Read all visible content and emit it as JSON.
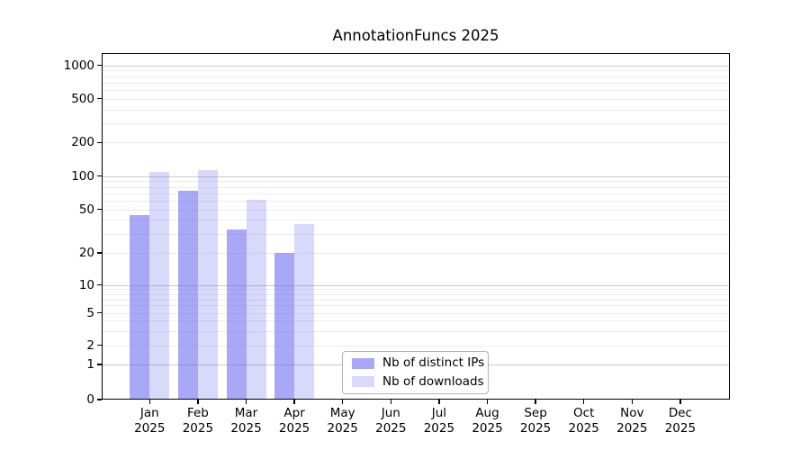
{
  "chart_data": {
    "type": "bar",
    "title": "AnnotationFuncs 2025",
    "categories": [
      "Jan",
      "Feb",
      "Mar",
      "Apr",
      "May",
      "Jun",
      "Jul",
      "Aug",
      "Sep",
      "Oct",
      "Nov",
      "Dec"
    ],
    "x_tick_year": "2025",
    "series": [
      {
        "name": "Nb of distinct IPs",
        "color": "#a8a8f3",
        "values": [
          44,
          74,
          33,
          20,
          0,
          0,
          0,
          0,
          0,
          0,
          0,
          0
        ]
      },
      {
        "name": "Nb of downloads",
        "color": "#dadaf8",
        "values": [
          109,
          113,
          61,
          37,
          0,
          0,
          0,
          0,
          0,
          0,
          0,
          0
        ]
      }
    ],
    "y_ticks": [
      0,
      1,
      2,
      5,
      10,
      20,
      50,
      100,
      200,
      500,
      1000
    ],
    "y_scale": "symlog",
    "ylim": [
      0,
      1400
    ],
    "grid": true,
    "legend_position": "lower center inside"
  },
  "colors": {
    "bar_base": "#6969f0",
    "bar_ips_alpha": 0.58,
    "bar_downloads_alpha": 0.25,
    "bar_ips_hex": "#a8a8f3",
    "bar_downloads_hex": "#dadaf8",
    "grid_major": "#c9c9c9",
    "grid_minor": "#ececec",
    "spine": "#000000",
    "legend_border": "#b3b3b3",
    "background": "#ffffff",
    "text": "#000000"
  }
}
